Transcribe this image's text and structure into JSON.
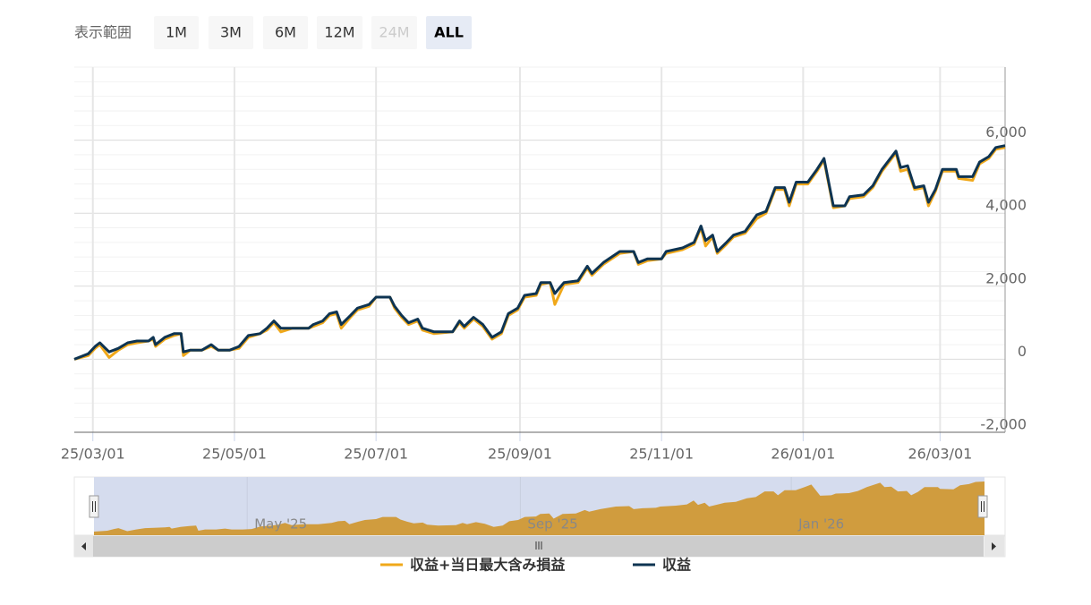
{
  "chart_data": {
    "type": "line",
    "range_selector": {
      "label": "表示範囲",
      "buttons": [
        "1M",
        "3M",
        "6M",
        "12M",
        "24M",
        "ALL"
      ],
      "selected": "ALL",
      "disabled": [
        "24M"
      ]
    },
    "x": [
      "2025-02-21",
      "2025-02-27",
      "2025-03-02",
      "2025-03-04",
      "2025-03-08",
      "2025-03-12",
      "2025-03-16",
      "2025-03-20",
      "2025-03-25",
      "2025-03-27",
      "2025-03-28",
      "2025-04-01",
      "2025-04-05",
      "2025-04-08",
      "2025-04-09",
      "2025-04-12",
      "2025-04-17",
      "2025-04-21",
      "2025-04-24",
      "2025-04-29",
      "2025-05-03",
      "2025-05-07",
      "2025-05-12",
      "2025-05-15",
      "2025-05-18",
      "2025-05-21",
      "2025-05-26",
      "2025-06-02",
      "2025-06-04",
      "2025-06-08",
      "2025-06-11",
      "2025-06-14",
      "2025-06-16",
      "2025-06-20",
      "2025-06-23",
      "2025-06-28",
      "2025-07-01",
      "2025-07-07",
      "2025-07-09",
      "2025-07-12",
      "2025-07-15",
      "2025-07-19",
      "2025-07-21",
      "2025-07-26",
      "2025-08-03",
      "2025-08-06",
      "2025-08-08",
      "2025-08-12",
      "2025-08-16",
      "2025-08-20",
      "2025-08-24",
      "2025-08-27",
      "2025-08-31",
      "2025-09-03",
      "2025-09-08",
      "2025-09-10",
      "2025-09-14",
      "2025-09-16",
      "2025-09-20",
      "2025-09-26",
      "2025-09-30",
      "2025-10-02",
      "2025-10-07",
      "2025-10-14",
      "2025-10-20",
      "2025-10-22",
      "2025-10-26",
      "2025-11-01",
      "2025-11-03",
      "2025-11-10",
      "2025-11-15",
      "2025-11-18",
      "2025-11-20",
      "2025-11-23",
      "2025-11-25",
      "2025-11-29",
      "2025-12-02",
      "2025-12-07",
      "2025-12-12",
      "2025-12-16",
      "2025-12-20",
      "2025-12-24",
      "2025-12-26",
      "2025-12-29",
      "2026-01-03",
      "2026-01-07",
      "2026-01-10",
      "2026-01-14",
      "2026-01-19",
      "2026-01-21",
      "2026-01-27",
      "2026-01-31",
      "2026-02-04",
      "2026-02-10",
      "2026-02-12",
      "2026-02-15",
      "2026-02-18",
      "2026-02-22",
      "2026-02-24",
      "2026-02-27",
      "2026-03-02",
      "2026-03-08",
      "2026-03-09",
      "2026-03-15",
      "2026-03-18",
      "2026-03-22",
      "2026-03-25",
      "2026-03-29"
    ],
    "series": [
      {
        "name": "収益+当日最大含み損益",
        "color": "#f0a81a",
        "values": [
          0,
          100,
          300,
          400,
          50,
          250,
          400,
          450,
          500,
          550,
          350,
          550,
          650,
          700,
          100,
          250,
          250,
          350,
          250,
          250,
          300,
          600,
          700,
          800,
          1000,
          750,
          850,
          850,
          900,
          1000,
          1200,
          1250,
          850,
          1150,
          1350,
          1450,
          1700,
          1700,
          1400,
          1150,
          950,
          1050,
          800,
          700,
          750,
          1000,
          850,
          1100,
          900,
          550,
          700,
          1200,
          1350,
          1700,
          1750,
          2050,
          2100,
          1500,
          2050,
          2100,
          2500,
          2300,
          2600,
          2900,
          2950,
          2600,
          2700,
          2750,
          2900,
          3000,
          3150,
          3600,
          3100,
          3350,
          2900,
          3150,
          3350,
          3450,
          3850,
          4000,
          4650,
          4650,
          4200,
          4800,
          4800,
          5150,
          5450,
          4150,
          4200,
          4400,
          4450,
          4700,
          5150,
          5650,
          5150,
          5200,
          4650,
          4700,
          4200,
          4600,
          5150,
          5150,
          4950,
          4900,
          5350,
          5500,
          5750,
          5800
        ]
      },
      {
        "name": "収益",
        "color": "#0e3452",
        "values": [
          0,
          150,
          350,
          450,
          200,
          300,
          450,
          500,
          500,
          600,
          400,
          600,
          700,
          700,
          200,
          250,
          250,
          400,
          250,
          250,
          350,
          650,
          700,
          850,
          1050,
          850,
          850,
          850,
          950,
          1050,
          1250,
          1300,
          950,
          1200,
          1400,
          1500,
          1700,
          1700,
          1450,
          1200,
          1000,
          1100,
          850,
          750,
          750,
          1050,
          900,
          1150,
          950,
          600,
          750,
          1250,
          1400,
          1750,
          1800,
          2100,
          2100,
          1800,
          2100,
          2150,
          2550,
          2350,
          2650,
          2950,
          2950,
          2650,
          2750,
          2750,
          2950,
          3050,
          3200,
          3650,
          3250,
          3400,
          2950,
          3200,
          3400,
          3500,
          3950,
          4050,
          4700,
          4700,
          4300,
          4850,
          4850,
          5200,
          5500,
          4200,
          4200,
          4450,
          4500,
          4750,
          5200,
          5700,
          5250,
          5300,
          4700,
          4750,
          4300,
          4650,
          5200,
          5200,
          5000,
          5000,
          5400,
          5550,
          5800,
          5850
        ]
      }
    ],
    "xlim": [
      "2025-02-21",
      "2026-03-29"
    ],
    "xticks": [
      {
        "value": "2025-03-01",
        "label": "25/03/01"
      },
      {
        "value": "2025-05-01",
        "label": "25/05/01"
      },
      {
        "value": "2025-07-01",
        "label": "25/07/01"
      },
      {
        "value": "2025-09-01",
        "label": "25/09/01"
      },
      {
        "value": "2025-11-01",
        "label": "25/11/01"
      },
      {
        "value": "2026-01-01",
        "label": "26/01/01"
      },
      {
        "value": "2026-03-01",
        "label": "26/03/01"
      }
    ],
    "ylim": [
      -2000,
      8000
    ],
    "yticks": [
      {
        "value": -2000,
        "label": "-2,000"
      },
      0,
      {
        "value": 2000,
        "label": "2,000"
      },
      {
        "value": 4000,
        "label": "4,000"
      },
      {
        "value": 6000,
        "label": "6,000"
      }
    ],
    "grid": true,
    "minor_grid": true,
    "navigator": {
      "color": "#d09c3e",
      "xticks": [
        {
          "value": "2025-05-01",
          "label": "May '25"
        },
        {
          "value": "2025-09-01",
          "label": "Sep '25"
        },
        {
          "value": "2026-01-01",
          "label": "Jan '26"
        }
      ]
    }
  }
}
